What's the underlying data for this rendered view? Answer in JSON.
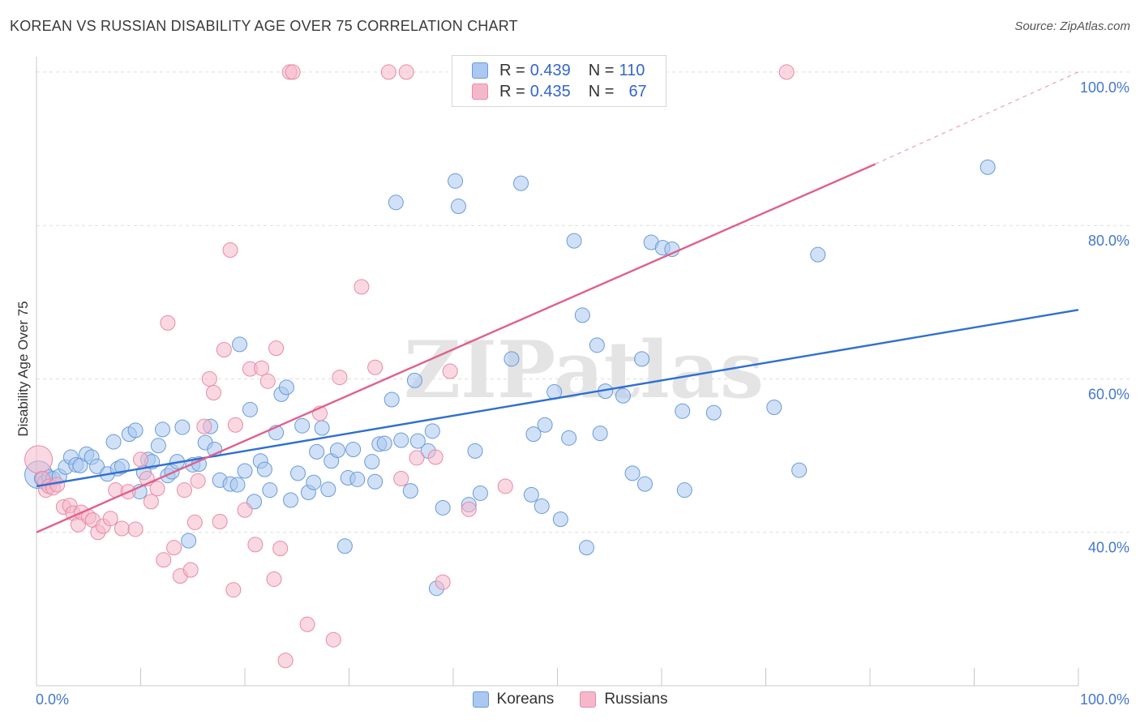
{
  "header": {
    "title": "KOREAN VS RUSSIAN DISABILITY AGE OVER 75 CORRELATION CHART",
    "source": "Source: ZipAtlas.com"
  },
  "watermark": "ZIPatlas",
  "legend_top": {
    "rows": [
      {
        "r_label": "R = ",
        "r_value": "0.439",
        "n_label": "N = ",
        "n_value": "110",
        "color": "#aac8f0"
      },
      {
        "r_label": "R = ",
        "r_value": "0.435",
        "n_label": "N = ",
        "n_value": "67",
        "color": "#f5b8cb"
      }
    ]
  },
  "bottom_legend": {
    "items": [
      {
        "label": "Koreans",
        "color": "#aac8f0"
      },
      {
        "label": "Russians",
        "color": "#f5b8cb"
      }
    ]
  },
  "chart_data": {
    "type": "scatter",
    "title": "KOREAN VS RUSSIAN DISABILITY AGE OVER 75 CORRELATION CHART",
    "xlabel": "",
    "ylabel": "Disability Age Over 75",
    "xlim": [
      0,
      100
    ],
    "ylim": [
      20,
      102
    ],
    "x_tick_labels": [
      {
        "value": 0,
        "label": "0.0%"
      },
      {
        "value": 100,
        "label": "100.0%"
      }
    ],
    "y_tick_labels": [
      {
        "value": 40,
        "label": "40.0%"
      },
      {
        "value": 60,
        "label": "60.0%"
      },
      {
        "value": 80,
        "label": "80.0%"
      },
      {
        "value": 100,
        "label": "100.0%"
      }
    ],
    "grid": true,
    "legend_position": "top-center",
    "series": [
      {
        "name": "Koreans",
        "color": "#aac8f0",
        "stroke": "#6a9ad8",
        "trend": {
          "x0": 0,
          "y0": 46,
          "x1": 100,
          "y1": 69,
          "color": "#2f6fd0"
        },
        "points": [
          [
            0.2,
            47.5
          ],
          [
            0.5,
            47
          ],
          [
            0.8,
            46.5
          ],
          [
            1.2,
            47.2
          ],
          [
            1.6,
            47
          ],
          [
            2.2,
            47.3
          ],
          [
            2.8,
            48.5
          ],
          [
            3.3,
            49.8
          ],
          [
            3.8,
            48.8
          ],
          [
            4.2,
            48.7
          ],
          [
            4.8,
            50.2
          ],
          [
            5.3,
            49.8
          ],
          [
            5.8,
            48.6
          ],
          [
            6.8,
            47.6
          ],
          [
            7.4,
            51.8
          ],
          [
            7.8,
            48.3
          ],
          [
            8.2,
            48.6
          ],
          [
            8.9,
            52.8
          ],
          [
            9.5,
            53.3
          ],
          [
            9.9,
            45.3
          ],
          [
            10.3,
            47.8
          ],
          [
            10.7,
            49.5
          ],
          [
            11.1,
            49.2
          ],
          [
            11.7,
            51.3
          ],
          [
            12.1,
            53.4
          ],
          [
            12.6,
            47.4
          ],
          [
            13.0,
            47.9
          ],
          [
            13.5,
            49.2
          ],
          [
            14.0,
            53.7
          ],
          [
            14.6,
            38.9
          ],
          [
            15.0,
            48.8
          ],
          [
            15.6,
            48.9
          ],
          [
            16.2,
            51.7
          ],
          [
            16.7,
            53.8
          ],
          [
            17.1,
            50.8
          ],
          [
            17.6,
            46.8
          ],
          [
            18.6,
            46.3
          ],
          [
            19.3,
            46.2
          ],
          [
            19.5,
            64.5
          ],
          [
            20.0,
            48.0
          ],
          [
            20.5,
            56.0
          ],
          [
            20.9,
            44.0
          ],
          [
            21.5,
            49.3
          ],
          [
            21.9,
            48.2
          ],
          [
            22.4,
            45.5
          ],
          [
            23.0,
            53.0
          ],
          [
            23.5,
            58.0
          ],
          [
            24.0,
            58.9
          ],
          [
            24.4,
            44.2
          ],
          [
            25.1,
            47.7
          ],
          [
            25.5,
            53.9
          ],
          [
            26.1,
            45.2
          ],
          [
            26.6,
            46.5
          ],
          [
            26.9,
            50.5
          ],
          [
            27.4,
            53.6
          ],
          [
            28.0,
            45.6
          ],
          [
            28.3,
            49.3
          ],
          [
            28.9,
            50.7
          ],
          [
            29.6,
            38.2
          ],
          [
            29.9,
            47.1
          ],
          [
            30.4,
            50.8
          ],
          [
            30.8,
            46.9
          ],
          [
            32.2,
            49.2
          ],
          [
            32.5,
            46.6
          ],
          [
            32.9,
            51.5
          ],
          [
            33.4,
            51.6
          ],
          [
            34.1,
            57.3
          ],
          [
            34.5,
            83.0
          ],
          [
            35.0,
            52.0
          ],
          [
            35.9,
            45.4
          ],
          [
            36.3,
            59.8
          ],
          [
            36.6,
            51.9
          ],
          [
            37.6,
            50.6
          ],
          [
            38.0,
            53.2
          ],
          [
            38.4,
            32.7
          ],
          [
            39.0,
            43.2
          ],
          [
            40.2,
            85.8
          ],
          [
            40.5,
            82.5
          ],
          [
            41.5,
            43.6
          ],
          [
            42.1,
            50.6
          ],
          [
            42.6,
            45.1
          ],
          [
            45.6,
            62.6
          ],
          [
            46.5,
            85.5
          ],
          [
            47.5,
            44.9
          ],
          [
            47.7,
            52.8
          ],
          [
            48.5,
            43.4
          ],
          [
            48.8,
            54.0
          ],
          [
            49.7,
            58.3
          ],
          [
            50.3,
            41.7
          ],
          [
            51.1,
            52.3
          ],
          [
            51.6,
            78.0
          ],
          [
            52.4,
            68.3
          ],
          [
            52.8,
            38.0
          ],
          [
            53.8,
            64.4
          ],
          [
            54.1,
            52.9
          ],
          [
            54.6,
            58.4
          ],
          [
            56.3,
            57.8
          ],
          [
            57.2,
            47.7
          ],
          [
            58.1,
            62.6
          ],
          [
            58.4,
            46.3
          ],
          [
            59.0,
            77.8
          ],
          [
            60.1,
            77.1
          ],
          [
            61.0,
            76.9
          ],
          [
            62.0,
            55.8
          ],
          [
            62.2,
            45.5
          ],
          [
            65.0,
            55.6
          ],
          [
            70.8,
            56.3
          ],
          [
            73.2,
            48.1
          ],
          [
            75.0,
            76.2
          ],
          [
            91.3,
            87.6
          ]
        ]
      },
      {
        "name": "Russians",
        "color": "#f5b8cb",
        "stroke": "#e88aa6",
        "trend": {
          "x0": 0,
          "y0": 40,
          "x1": 80.5,
          "y1": 88,
          "color": "#e0608c",
          "dashed_to": {
            "x": 100,
            "y": 100
          }
        },
        "points": [
          [
            0.2,
            49.5
          ],
          [
            0.6,
            47.0
          ],
          [
            0.9,
            45.5
          ],
          [
            1.2,
            46.0
          ],
          [
            1.6,
            45.8
          ],
          [
            2.0,
            46.2
          ],
          [
            2.6,
            43.3
          ],
          [
            3.2,
            43.5
          ],
          [
            3.5,
            42.5
          ],
          [
            4.0,
            41.0
          ],
          [
            4.3,
            42.6
          ],
          [
            5.0,
            42.0
          ],
          [
            5.4,
            41.6
          ],
          [
            5.9,
            40.0
          ],
          [
            6.4,
            40.8
          ],
          [
            7.1,
            41.8
          ],
          [
            7.6,
            45.5
          ],
          [
            8.2,
            40.5
          ],
          [
            8.8,
            45.3
          ],
          [
            9.5,
            40.4
          ],
          [
            10.0,
            49.5
          ],
          [
            10.6,
            47.0
          ],
          [
            11.0,
            44.0
          ],
          [
            11.6,
            45.7
          ],
          [
            12.2,
            36.4
          ],
          [
            12.6,
            67.3
          ],
          [
            13.2,
            38.0
          ],
          [
            13.8,
            34.3
          ],
          [
            14.2,
            45.5
          ],
          [
            14.8,
            35.1
          ],
          [
            15.2,
            41.3
          ],
          [
            15.5,
            46.7
          ],
          [
            16.1,
            53.8
          ],
          [
            16.6,
            60.0
          ],
          [
            17.0,
            58.2
          ],
          [
            17.6,
            41.4
          ],
          [
            18.0,
            63.8
          ],
          [
            18.6,
            76.8
          ],
          [
            18.9,
            32.5
          ],
          [
            19.1,
            54.0
          ],
          [
            20.0,
            42.9
          ],
          [
            20.5,
            61.3
          ],
          [
            21.0,
            38.4
          ],
          [
            21.6,
            61.4
          ],
          [
            22.2,
            59.7
          ],
          [
            22.8,
            33.9
          ],
          [
            23.0,
            64.0
          ],
          [
            23.4,
            37.9
          ],
          [
            23.9,
            23.3
          ],
          [
            24.3,
            100.0
          ],
          [
            24.6,
            100.0
          ],
          [
            26.0,
            28.0
          ],
          [
            27.2,
            55.5
          ],
          [
            28.5,
            26.0
          ],
          [
            29.1,
            60.2
          ],
          [
            31.2,
            72.0
          ],
          [
            32.5,
            61.5
          ],
          [
            33.8,
            100.0
          ],
          [
            35.0,
            47.0
          ],
          [
            35.5,
            100.0
          ],
          [
            36.5,
            49.7
          ],
          [
            38.3,
            49.8
          ],
          [
            39.0,
            33.5
          ],
          [
            39.7,
            61.0
          ],
          [
            41.5,
            43.0
          ],
          [
            45.0,
            46.0
          ],
          [
            72.0,
            100.0
          ]
        ]
      }
    ]
  }
}
